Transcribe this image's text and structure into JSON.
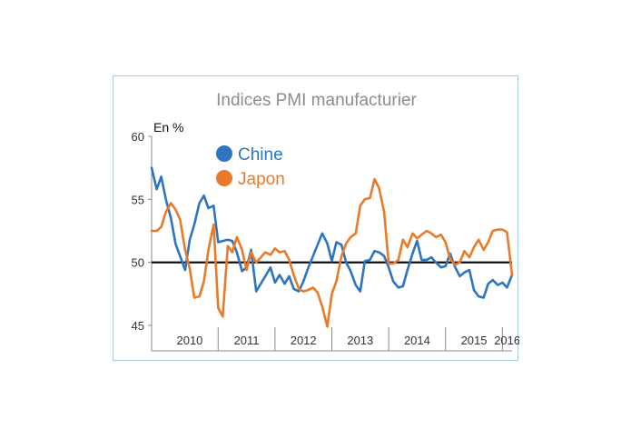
{
  "chart_data": {
    "type": "line",
    "title": "Indices PMI manufacturier",
    "ylabel": "En %",
    "ylim": [
      45,
      60
    ],
    "yticks": [
      45,
      50,
      55,
      60
    ],
    "reference_line": 50,
    "x_start": 2009.83,
    "x_end": 2016.17,
    "categories": [
      "2010",
      "2011",
      "2012",
      "2013",
      "2014",
      "2015",
      "2016"
    ],
    "legend_position": "top-left",
    "grid": false,
    "series": [
      {
        "name": "Chine",
        "color": "#2e75c0",
        "x": [
          2009.83,
          2009.92,
          2010.0,
          2010.08,
          2010.17,
          2010.25,
          2010.33,
          2010.42,
          2010.5,
          2010.58,
          2010.67,
          2010.75,
          2010.83,
          2010.92,
          2011.0,
          2011.08,
          2011.17,
          2011.25,
          2011.33,
          2011.42,
          2011.5,
          2011.58,
          2011.67,
          2011.75,
          2011.83,
          2011.92,
          2012.0,
          2012.08,
          2012.17,
          2012.25,
          2012.33,
          2012.42,
          2012.5,
          2012.58,
          2012.67,
          2012.75,
          2012.83,
          2012.92,
          2013.0,
          2013.08,
          2013.17,
          2013.25,
          2013.33,
          2013.42,
          2013.5,
          2013.58,
          2013.67,
          2013.75,
          2013.83,
          2013.92,
          2014.0,
          2014.08,
          2014.17,
          2014.25,
          2014.33,
          2014.42,
          2014.5,
          2014.58,
          2014.67,
          2014.75,
          2014.83,
          2014.92,
          2015.0,
          2015.08,
          2015.17,
          2015.25,
          2015.33,
          2015.42,
          2015.5,
          2015.58,
          2015.67,
          2015.75,
          2015.83,
          2015.92,
          2016.0,
          2016.08,
          2016.17
        ],
        "values": [
          57.5,
          55.8,
          56.8,
          55.0,
          53.5,
          51.5,
          50.5,
          49.4,
          51.8,
          53.0,
          54.7,
          55.3,
          54.3,
          54.5,
          51.6,
          51.7,
          51.8,
          51.7,
          50.8,
          49.3,
          49.6,
          51.0,
          47.7,
          48.3,
          48.9,
          49.6,
          48.4,
          49.0,
          48.3,
          48.9,
          47.9,
          47.7,
          48.5,
          49.5,
          50.5,
          51.4,
          52.3,
          51.5,
          50.1,
          51.6,
          51.4,
          50.0,
          49.3,
          48.2,
          47.7,
          50.1,
          50.2,
          50.9,
          50.8,
          50.5,
          49.6,
          48.5,
          48.0,
          48.1,
          49.4,
          50.7,
          51.7,
          50.2,
          50.2,
          50.4,
          50.0,
          49.6,
          49.7,
          50.7,
          49.6,
          48.9,
          49.2,
          49.4,
          47.8,
          47.3,
          47.2,
          48.3,
          48.6,
          48.2,
          48.4,
          48.0,
          49.0
        ]
      },
      {
        "name": "Japon",
        "color": "#e87a2a",
        "x": [
          2009.83,
          2009.92,
          2010.0,
          2010.08,
          2010.17,
          2010.25,
          2010.33,
          2010.42,
          2010.5,
          2010.58,
          2010.67,
          2010.75,
          2010.83,
          2010.92,
          2011.0,
          2011.08,
          2011.17,
          2011.25,
          2011.33,
          2011.42,
          2011.5,
          2011.58,
          2011.67,
          2011.75,
          2011.83,
          2011.92,
          2012.0,
          2012.08,
          2012.17,
          2012.25,
          2012.33,
          2012.42,
          2012.5,
          2012.58,
          2012.67,
          2012.75,
          2012.83,
          2012.92,
          2013.0,
          2013.08,
          2013.17,
          2013.25,
          2013.33,
          2013.42,
          2013.5,
          2013.58,
          2013.67,
          2013.75,
          2013.83,
          2013.92,
          2014.0,
          2014.08,
          2014.17,
          2014.25,
          2014.33,
          2014.42,
          2014.5,
          2014.58,
          2014.67,
          2014.75,
          2014.83,
          2014.92,
          2015.0,
          2015.08,
          2015.17,
          2015.25,
          2015.33,
          2015.42,
          2015.5,
          2015.58,
          2015.67,
          2015.75,
          2015.83,
          2015.92,
          2016.0,
          2016.08,
          2016.17
        ],
        "values": [
          52.5,
          52.5,
          52.8,
          54.0,
          54.7,
          54.2,
          53.4,
          51.0,
          49.5,
          47.2,
          47.3,
          48.5,
          51.0,
          53.0,
          46.4,
          45.7,
          51.3,
          50.8,
          52.0,
          51.0,
          49.4,
          50.8,
          50.0,
          50.4,
          50.8,
          50.6,
          51.1,
          50.8,
          50.9,
          50.2,
          49.0,
          47.9,
          47.7,
          47.8,
          48.0,
          47.6,
          46.5,
          44.9,
          47.5,
          48.5,
          50.5,
          51.5,
          52.0,
          52.3,
          54.5,
          55.0,
          55.1,
          56.6,
          55.9,
          54.0,
          49.9,
          49.9,
          50.2,
          51.8,
          51.2,
          52.3,
          51.9,
          52.2,
          52.5,
          52.3,
          52.0,
          52.2,
          51.6,
          50.3,
          49.8,
          50.0,
          50.9,
          50.4,
          51.2,
          51.8,
          51.0,
          51.6,
          52.5,
          52.6,
          52.6,
          52.4,
          49.0
        ]
      }
    ]
  }
}
